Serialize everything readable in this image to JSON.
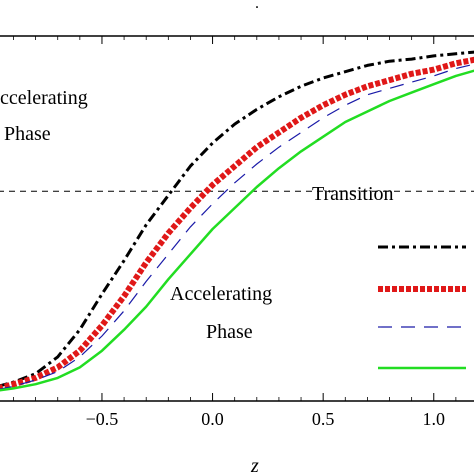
{
  "chart_data": {
    "type": "line",
    "title": "",
    "xlabel": "z",
    "ylabel": "",
    "xlim": [
      -0.97,
      1.2
    ],
    "ylim": [
      -1.0,
      0.74
    ],
    "xticks": [
      -0.5,
      0.0,
      0.5,
      1.0
    ],
    "xtick_labels": [
      "−0.5",
      "0.0",
      "0.5",
      "1.0"
    ],
    "grid": false,
    "transition_line": {
      "y": 0.0,
      "style": "dashed",
      "color": "#000000"
    },
    "annotations": {
      "top_left_line1": "ccelerating",
      "top_left_line2": "Phase",
      "right_label": "Transition",
      "bottom_line1": "Accelerating",
      "bottom_line2": "Phase",
      "top_dot": "."
    },
    "legend": {
      "placement": "right",
      "entries": [
        "",
        "",
        "",
        ""
      ]
    },
    "series": [
      {
        "style": "dashdot",
        "color": "#000000",
        "x": [
          -0.97,
          -0.9,
          -0.8,
          -0.7,
          -0.6,
          -0.5,
          -0.4,
          -0.3,
          -0.2,
          -0.1,
          0.0,
          0.1,
          0.2,
          0.3,
          0.4,
          0.5,
          0.6,
          0.7,
          0.8,
          0.9,
          1.0,
          1.1,
          1.2
        ],
        "y": [
          -0.93,
          -0.91,
          -0.87,
          -0.79,
          -0.66,
          -0.49,
          -0.33,
          -0.16,
          -0.02,
          0.12,
          0.23,
          0.32,
          0.39,
          0.45,
          0.5,
          0.54,
          0.57,
          0.6,
          0.62,
          0.63,
          0.645,
          0.655,
          0.665
        ]
      },
      {
        "style": "thick-dashed",
        "color": "#e01818",
        "x": [
          -0.97,
          -0.9,
          -0.8,
          -0.7,
          -0.6,
          -0.5,
          -0.4,
          -0.3,
          -0.2,
          -0.1,
          0.0,
          0.1,
          0.2,
          0.3,
          0.4,
          0.5,
          0.6,
          0.7,
          0.8,
          0.9,
          1.0,
          1.1,
          1.2
        ],
        "y": [
          -0.94,
          -0.92,
          -0.89,
          -0.84,
          -0.76,
          -0.64,
          -0.5,
          -0.34,
          -0.2,
          -0.08,
          0.03,
          0.12,
          0.21,
          0.28,
          0.35,
          0.41,
          0.46,
          0.5,
          0.53,
          0.56,
          0.58,
          0.61,
          0.63
        ]
      },
      {
        "style": "long-dashed",
        "color": "#1a1aa8",
        "x": [
          -0.97,
          -0.9,
          -0.8,
          -0.7,
          -0.6,
          -0.5,
          -0.4,
          -0.3,
          -0.2,
          -0.1,
          0.0,
          0.1,
          0.2,
          0.3,
          0.4,
          0.5,
          0.6,
          0.7,
          0.8,
          0.9,
          1.0,
          1.1,
          1.2
        ],
        "y": [
          -0.945,
          -0.93,
          -0.9,
          -0.86,
          -0.79,
          -0.69,
          -0.57,
          -0.43,
          -0.3,
          -0.17,
          -0.06,
          0.04,
          0.13,
          0.21,
          0.28,
          0.35,
          0.41,
          0.46,
          0.49,
          0.52,
          0.55,
          0.585,
          0.61
        ]
      },
      {
        "style": "solid",
        "color": "#22dd22",
        "x": [
          -0.97,
          -0.9,
          -0.8,
          -0.7,
          -0.6,
          -0.5,
          -0.4,
          -0.3,
          -0.2,
          -0.1,
          0.0,
          0.1,
          0.2,
          0.3,
          0.4,
          0.5,
          0.6,
          0.7,
          0.8,
          0.9,
          1.0,
          1.1,
          1.2
        ],
        "y": [
          -0.95,
          -0.94,
          -0.92,
          -0.89,
          -0.84,
          -0.76,
          -0.66,
          -0.55,
          -0.42,
          -0.3,
          -0.18,
          -0.08,
          0.02,
          0.11,
          0.19,
          0.26,
          0.33,
          0.38,
          0.43,
          0.47,
          0.51,
          0.55,
          0.58
        ]
      }
    ]
  }
}
